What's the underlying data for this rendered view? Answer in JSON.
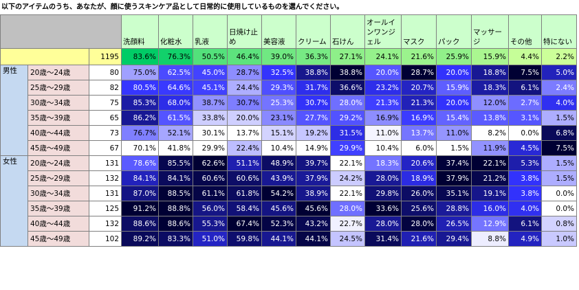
{
  "title": "以下のアイテムのうち、あなたが、顔に使うスキンケア品として日常的に使用しているものを選んでください。",
  "chart_data": {
    "type": "heatmap",
    "columns": [
      "洗顔料",
      "化粧水",
      "乳液",
      "日焼け止め",
      "美容液",
      "クリーム",
      "石けん",
      "オールインワンジェル",
      "マスク",
      "パック",
      "マッサージ",
      "その他",
      "特にない"
    ],
    "total": {
      "n": "1195",
      "values": [
        83.6,
        76.3,
        50.5,
        46.4,
        39.0,
        36.3,
        27.1,
        24.1,
        21.6,
        25.9,
        15.9,
        4.4,
        2.2
      ]
    },
    "groups": [
      {
        "gender": "男性",
        "rows": [
          {
            "age": "20歳～24歳",
            "n": "80",
            "values": [
              75.0,
              62.5,
              45.0,
              28.7,
              32.5,
              38.8,
              38.8,
              20.0,
              28.7,
              20.0,
              18.8,
              7.5,
              5.0
            ]
          },
          {
            "age": "25歳～29歳",
            "n": "82",
            "values": [
              80.5,
              64.6,
              45.1,
              24.4,
              29.3,
              31.7,
              36.6,
              23.2,
              20.7,
              15.9,
              18.3,
              6.1,
              2.4
            ]
          },
          {
            "age": "30歳～34歳",
            "n": "75",
            "values": [
              85.3,
              68.0,
              38.7,
              30.7,
              25.3,
              30.7,
              28.0,
              21.3,
              21.3,
              20.0,
              12.0,
              2.7,
              4.0
            ]
          },
          {
            "age": "35歳～39歳",
            "n": "65",
            "values": [
              86.2,
              61.5,
              33.8,
              20.0,
              23.1,
              27.7,
              29.2,
              16.9,
              16.9,
              15.4,
              13.8,
              3.1,
              1.5
            ]
          },
          {
            "age": "40歳～44歳",
            "n": "73",
            "values": [
              76.7,
              52.1,
              30.1,
              13.7,
              15.1,
              19.2,
              31.5,
              11.0,
              13.7,
              11.0,
              8.2,
              0.0,
              6.8
            ]
          },
          {
            "age": "45歳～49歳",
            "n": "67",
            "values": [
              70.1,
              41.8,
              29.9,
              22.4,
              10.4,
              14.9,
              29.9,
              10.4,
              6.0,
              1.5,
              11.9,
              4.5,
              7.5
            ]
          }
        ]
      },
      {
        "gender": "女性",
        "rows": [
          {
            "age": "20歳～24歳",
            "n": "131",
            "values": [
              78.6,
              85.5,
              62.6,
              51.1,
              48.9,
              39.7,
              22.1,
              18.3,
              20.6,
              37.4,
              22.1,
              5.3,
              1.5
            ]
          },
          {
            "age": "25歳～29歳",
            "n": "132",
            "values": [
              84.1,
              84.1,
              60.6,
              60.6,
              43.9,
              37.9,
              24.2,
              28.0,
              18.9,
              37.9,
              21.2,
              3.8,
              1.5
            ]
          },
          {
            "age": "30歳～34歳",
            "n": "131",
            "values": [
              87.0,
              88.5,
              61.1,
              61.8,
              54.2,
              38.9,
              22.1,
              29.8,
              26.0,
              35.1,
              19.1,
              3.8,
              0.0
            ]
          },
          {
            "age": "35歳～39歳",
            "n": "125",
            "values": [
              91.2,
              88.8,
              56.0,
              58.4,
              45.6,
              45.6,
              28.0,
              33.6,
              25.6,
              28.8,
              16.0,
              4.0,
              0.0
            ]
          },
          {
            "age": "40歳～44歳",
            "n": "132",
            "values": [
              88.6,
              88.6,
              55.3,
              67.4,
              52.3,
              43.2,
              22.7,
              28.0,
              28.0,
              26.5,
              12.9,
              6.1,
              0.8
            ]
          },
          {
            "age": "45歳～49歳",
            "n": "102",
            "values": [
              89.2,
              83.3,
              51.0,
              59.8,
              44.1,
              44.1,
              24.5,
              31.4,
              21.6,
              29.4,
              8.8,
              4.9,
              1.0
            ]
          }
        ]
      }
    ],
    "colors": {
      "header_grey": "#c0c0c0",
      "item_header": "#ccffcc",
      "total_row": "#ffff99",
      "gender_cell": "#c5d9f1",
      "age_cell": "#f2dcdb",
      "total_high": "#00cc66",
      "total_low": "#ccff99",
      "scale_dark": "#000033",
      "scale_mid": "#3333ff",
      "scale_light": "#ffffff"
    }
  }
}
